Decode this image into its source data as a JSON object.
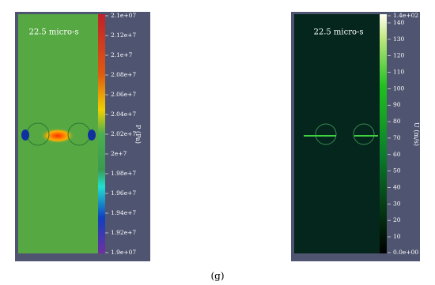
{
  "panels": [
    {
      "time": "22.5 micro-s",
      "axis_title": "P (Pa)",
      "ticks": [
        "2.1e+07",
        "2.12e+7",
        "2.1e+7",
        "2.08e+7",
        "2.06e+7",
        "2.04e+7",
        "2.02e+7",
        "2e+7",
        "1.98e+7",
        "1.96e+7",
        "1.94e+7",
        "1.92e+7",
        "1.9e+07"
      ]
    },
    {
      "time": "22.5 micro-s",
      "axis_title": "U (m/s)",
      "ticks": [
        "1.4e+02",
        140,
        130,
        120,
        110,
        100,
        90,
        80,
        70,
        60,
        50,
        40,
        30,
        20,
        10,
        "0.0e+00"
      ]
    }
  ],
  "caption": "(g)"
}
